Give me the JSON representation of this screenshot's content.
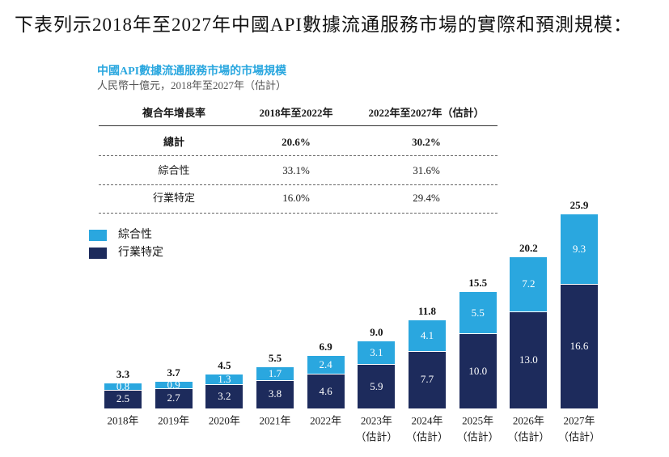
{
  "intro": "下表列示2018年至2027年中國API數據流通服務市場的實際和預測規模：",
  "table": {
    "header": [
      "複合年增長率",
      "2018年至2022年",
      "2022年至2027年（估計）"
    ],
    "rows": [
      {
        "label": "總計",
        "values": [
          "20.6%",
          "30.2%"
        ]
      },
      {
        "label": "綜合性",
        "values": [
          "33.1%",
          "31.6%"
        ]
      },
      {
        "label": "行業特定",
        "values": [
          "16.0%",
          "29.4%"
        ]
      }
    ]
  },
  "chart_data": {
    "type": "bar",
    "stacked": true,
    "title": "中國API數據流通服務市場的市場規模",
    "subtitle": "人民幣十億元，2018年至2027年（估計）",
    "title_color": "#2aa7df",
    "categories": [
      [
        "2018年"
      ],
      [
        "2019年"
      ],
      [
        "2020年"
      ],
      [
        "2021年"
      ],
      [
        "2022年"
      ],
      [
        "2023年",
        "（估計）"
      ],
      [
        "2024年",
        "（估計）"
      ],
      [
        "2025年",
        "（估計）"
      ],
      [
        "2026年",
        "（估計）"
      ],
      [
        "2027年",
        "（估計）"
      ]
    ],
    "series": [
      {
        "name": "行業特定",
        "color": "#1d2b5c",
        "values": [
          2.5,
          2.7,
          3.2,
          3.8,
          4.6,
          5.9,
          7.7,
          10.0,
          13.0,
          16.6
        ]
      },
      {
        "name": "綜合性",
        "color": "#2aa7df",
        "values": [
          0.8,
          0.9,
          1.3,
          1.7,
          2.4,
          3.1,
          4.1,
          5.5,
          7.2,
          9.3
        ]
      }
    ],
    "totals": [
      3.3,
      3.7,
      4.5,
      5.5,
      6.9,
      9.0,
      11.8,
      15.5,
      20.2,
      25.9
    ],
    "legend_position": "top-left",
    "grid": false
  }
}
